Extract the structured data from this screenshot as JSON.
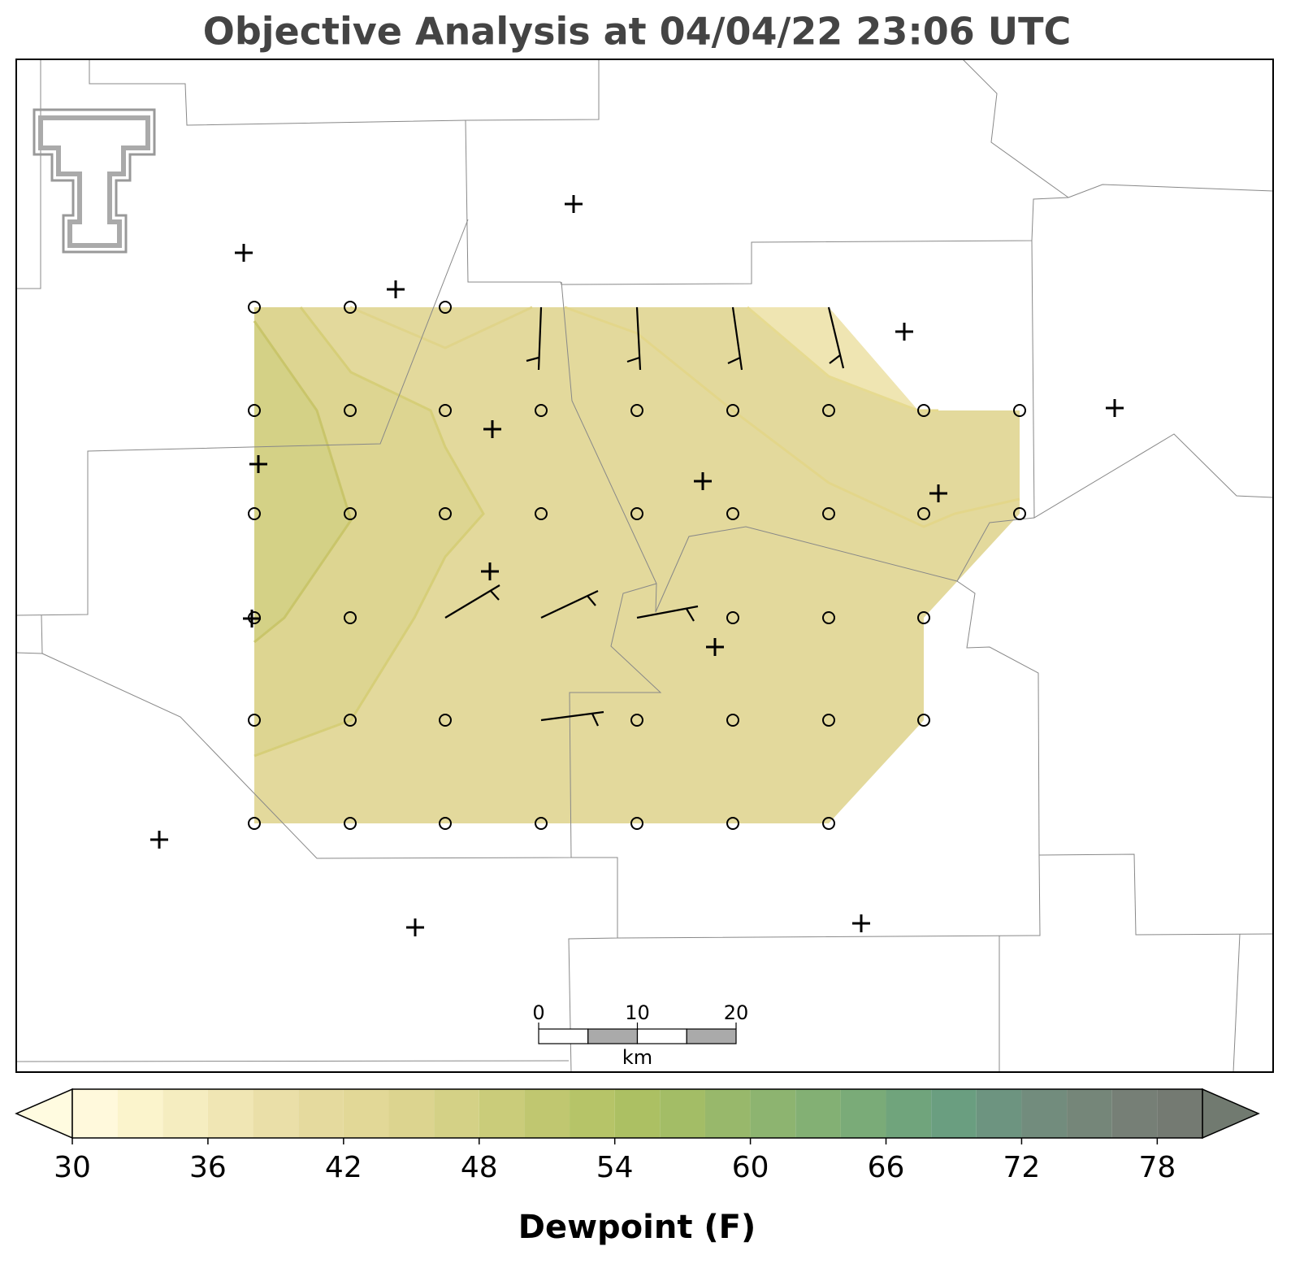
{
  "title": "Objective Analysis at 04/04/22 23:06 UTC",
  "colorbar": {
    "label": "Dewpoint (F)",
    "lim": [
      30,
      80
    ],
    "levels": [
      30,
      32,
      34,
      36,
      38,
      40,
      42,
      44,
      46,
      48,
      50,
      52,
      54,
      56,
      58,
      60,
      62,
      64,
      66,
      68,
      70,
      72,
      74,
      76,
      78,
      80
    ],
    "colors": [
      "#fff9dc",
      "#fbf4cc",
      "#f5edc0",
      "#f0e6b4",
      "#eadfa8",
      "#e5da9e",
      "#e2d897",
      "#dcd48f",
      "#d4d186",
      "#cacc7a",
      "#c0c770",
      "#b6c468",
      "#acc063",
      "#a3bd66",
      "#98b86b",
      "#8db470",
      "#83b074",
      "#7aab78",
      "#70a47c",
      "#6a9e80",
      "#6d9480",
      "#728c7d",
      "#758679",
      "#767f76",
      "#747a72"
    ],
    "under_color": "#fffbe0",
    "over_color": "#717a70",
    "ticks": [
      30,
      36,
      42,
      48,
      54,
      60,
      66,
      72,
      78
    ]
  },
  "scale_bar": {
    "ticks": [
      0,
      10,
      20
    ],
    "unit": "km"
  }
}
